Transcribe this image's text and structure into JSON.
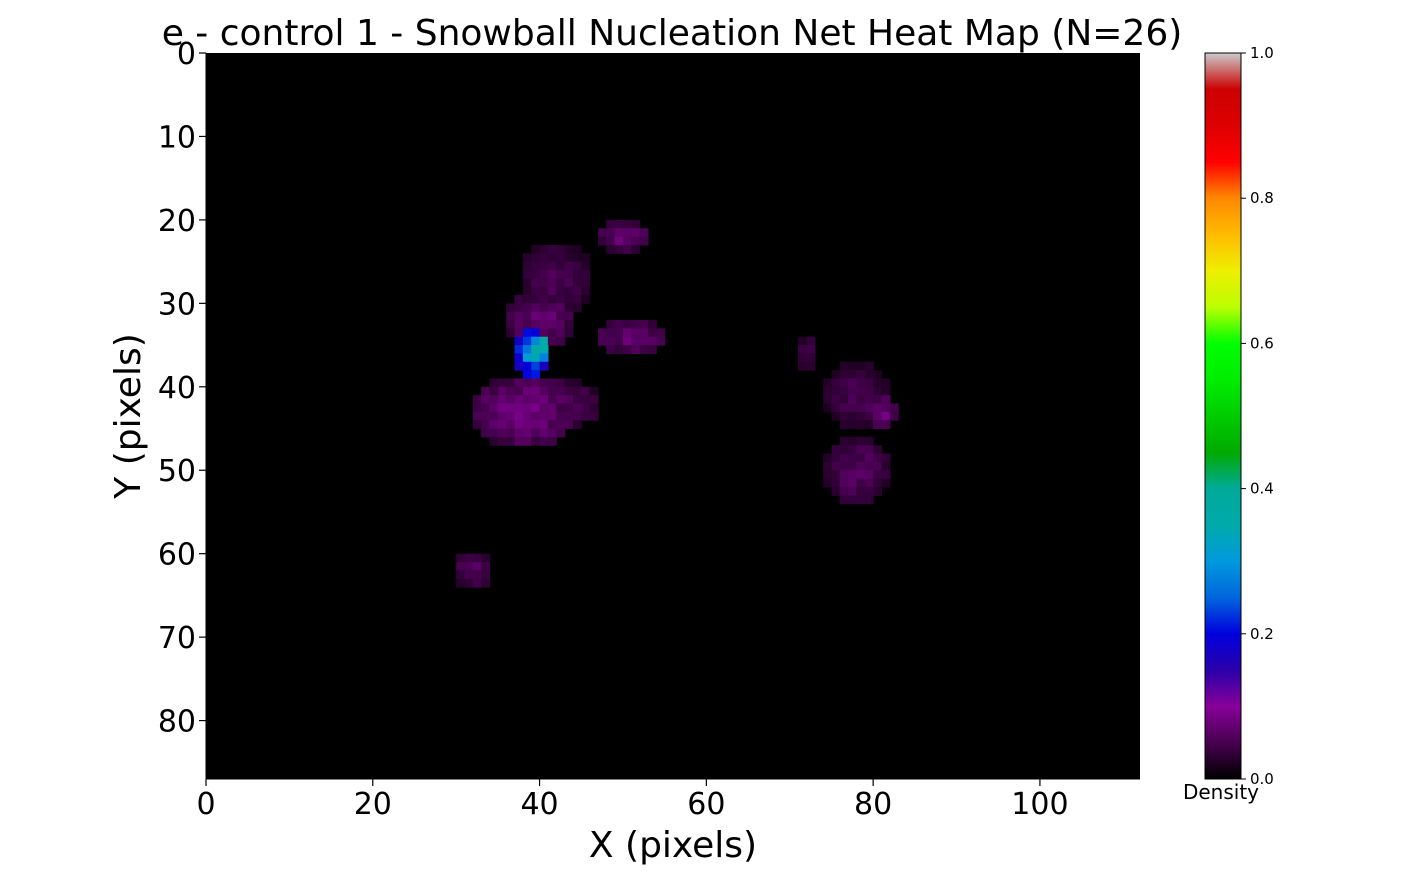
{
  "chart_data": {
    "type": "heatmap",
    "title": "e - control 1 - Snowball Nucleation Net Heat Map (N=26)",
    "xlabel": "X (pixels)",
    "ylabel": "Y (pixels)",
    "xlim": [
      0,
      112
    ],
    "ylim": [
      87,
      0
    ],
    "x_ticks": [
      0,
      20,
      40,
      60,
      80,
      100
    ],
    "y_ticks": [
      0,
      10,
      20,
      30,
      40,
      50,
      60,
      70,
      80
    ],
    "background_value": 0.0,
    "colorbar": {
      "label": "Density",
      "range": [
        0.0,
        1.0
      ],
      "ticks": [
        "0.0",
        "0.2",
        "0.4",
        "0.6",
        "0.8",
        "1.0"
      ],
      "colormap": "nipy_spectral",
      "stops": [
        {
          "v": 0.0,
          "color": "#000000"
        },
        {
          "v": 0.05,
          "color": "#470050"
        },
        {
          "v": 0.1,
          "color": "#880099"
        },
        {
          "v": 0.15,
          "color": "#2a00aa"
        },
        {
          "v": 0.2,
          "color": "#0000dd"
        },
        {
          "v": 0.25,
          "color": "#0066dd"
        },
        {
          "v": 0.3,
          "color": "#0099dd"
        },
        {
          "v": 0.35,
          "color": "#00aaaa"
        },
        {
          "v": 0.4,
          "color": "#00aa99"
        },
        {
          "v": 0.45,
          "color": "#00aa00"
        },
        {
          "v": 0.5,
          "color": "#00cc00"
        },
        {
          "v": 0.55,
          "color": "#00ee00"
        },
        {
          "v": 0.6,
          "color": "#00ff00"
        },
        {
          "v": 0.65,
          "color": "#bbff00"
        },
        {
          "v": 0.7,
          "color": "#eeee00"
        },
        {
          "v": 0.75,
          "color": "#ffbb00"
        },
        {
          "v": 0.8,
          "color": "#ff8800"
        },
        {
          "v": 0.85,
          "color": "#ff0000"
        },
        {
          "v": 0.9,
          "color": "#dd0000"
        },
        {
          "v": 0.95,
          "color": "#cc0000"
        },
        {
          "v": 1.0,
          "color": "#cccccc"
        }
      ]
    },
    "blobs": [
      {
        "cx": 38,
        "cy": 43,
        "rx": 6.5,
        "ry": 4.5,
        "value": 0.08
      },
      {
        "cx": 43,
        "cy": 42,
        "rx": 4.5,
        "ry": 3.0,
        "value": 0.06
      },
      {
        "cx": 40,
        "cy": 32,
        "rx": 4.5,
        "ry": 3.5,
        "value": 0.07
      },
      {
        "cx": 42,
        "cy": 27,
        "rx": 4.5,
        "ry": 4.5,
        "value": 0.05
      },
      {
        "cx": 50,
        "cy": 22,
        "rx": 3.5,
        "ry": 2.0,
        "value": 0.07
      },
      {
        "cx": 51,
        "cy": 34,
        "rx": 4.5,
        "ry": 2.0,
        "value": 0.07
      },
      {
        "cx": 39,
        "cy": 36,
        "rx": 2.5,
        "ry": 3.0,
        "value": 0.3
      },
      {
        "cx": 40,
        "cy": 35,
        "rx": 1.2,
        "ry": 1.5,
        "value": 0.38
      },
      {
        "cx": 32,
        "cy": 62,
        "rx": 2.4,
        "ry": 2.0,
        "value": 0.06
      },
      {
        "cx": 72,
        "cy": 36,
        "rx": 0.9,
        "ry": 2.5,
        "value": 0.05
      },
      {
        "cx": 78,
        "cy": 41,
        "rx": 3.8,
        "ry": 4.0,
        "value": 0.05
      },
      {
        "cx": 81,
        "cy": 43,
        "rx": 1.9,
        "ry": 2.2,
        "value": 0.08
      },
      {
        "cx": 78,
        "cy": 50,
        "rx": 4.0,
        "ry": 4.0,
        "value": 0.06
      }
    ]
  }
}
